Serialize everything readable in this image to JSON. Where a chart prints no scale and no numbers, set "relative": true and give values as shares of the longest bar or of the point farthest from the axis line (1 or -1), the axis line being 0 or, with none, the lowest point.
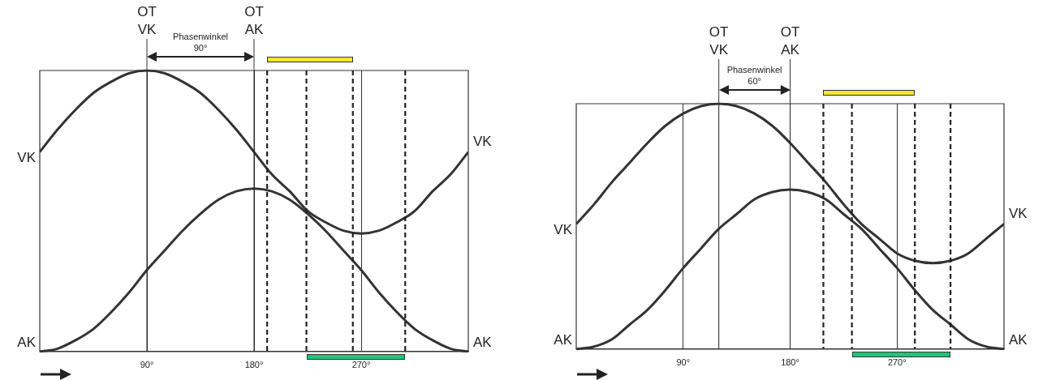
{
  "chart_data": [
    {
      "type": "line",
      "relative": true,
      "xlim": [
        0,
        360
      ],
      "xticks": [
        {
          "value": 90,
          "label": "90°"
        },
        {
          "value": 180,
          "label": "180°"
        },
        {
          "value": 270,
          "label": "270°"
        }
      ],
      "grid": "x",
      "legend": false,
      "marker": "none",
      "line_style": "solid",
      "series": [
        {
          "name": "VK",
          "color": "#333333",
          "x": [
            0,
            15,
            30,
            45,
            60,
            75,
            90,
            105,
            120,
            135,
            150,
            165,
            180,
            195,
            210,
            225,
            240,
            255,
            270,
            285,
            300,
            315,
            330,
            345,
            360
          ],
          "values": [
            0.71,
            0.79,
            0.86,
            0.92,
            0.96,
            0.99,
            1,
            0.99,
            0.96,
            0.92,
            0.86,
            0.79,
            0.71,
            0.63,
            0.57,
            0.5,
            0.46,
            0.43,
            0.42,
            0.43,
            0.46,
            0.5,
            0.57,
            0.63,
            0.71
          ]
        },
        {
          "name": "AK",
          "color": "#333333",
          "x": [
            0,
            15,
            30,
            45,
            60,
            75,
            90,
            105,
            120,
            135,
            150,
            165,
            180,
            195,
            210,
            225,
            240,
            255,
            270,
            285,
            300,
            315,
            330,
            345,
            360
          ],
          "values": [
            0,
            0.01,
            0.04,
            0.08,
            0.14,
            0.21,
            0.29,
            0.36,
            0.43,
            0.49,
            0.54,
            0.57,
            0.58,
            0.57,
            0.54,
            0.49,
            0.43,
            0.36,
            0.29,
            0.21,
            0.14,
            0.08,
            0.04,
            0.01,
            0
          ]
        }
      ],
      "ref_lines": [
        {
          "axis": "x",
          "value": 90,
          "label": "OT VK",
          "line_style": "solid"
        },
        {
          "axis": "x",
          "value": 180,
          "label": "OT AK",
          "line_style": "solid"
        },
        {
          "axis": "x",
          "value": 191,
          "line_style": "dashed"
        },
        {
          "axis": "x",
          "value": 263,
          "line_style": "dashed"
        },
        {
          "axis": "x",
          "value": 224,
          "line_style": "dashed"
        },
        {
          "axis": "x",
          "value": 307,
          "line_style": "dashed"
        }
      ],
      "annotations": [
        "Phasenwinkel 90°"
      ]
    },
    {
      "type": "line",
      "relative": true,
      "xlim": [
        0,
        360
      ],
      "xticks": [
        {
          "value": 90,
          "label": "90°"
        },
        {
          "value": 180,
          "label": "180°"
        },
        {
          "value": 270,
          "label": "270°"
        }
      ],
      "grid": "x",
      "legend": false,
      "marker": "none",
      "line_style": "solid",
      "series": [
        {
          "name": "VK",
          "color": "#333333",
          "x": [
            0,
            15,
            30,
            45,
            60,
            75,
            90,
            105,
            120,
            135,
            150,
            165,
            180,
            195,
            210,
            225,
            240,
            255,
            270,
            285,
            300,
            315,
            330,
            345,
            360
          ],
          "values": [
            0.51,
            0.59,
            0.68,
            0.76,
            0.84,
            0.91,
            0.96,
            0.99,
            1,
            0.99,
            0.96,
            0.91,
            0.84,
            0.76,
            0.68,
            0.59,
            0.51,
            0.45,
            0.39,
            0.36,
            0.35,
            0.36,
            0.39,
            0.45,
            0.51
          ]
        },
        {
          "name": "AK",
          "color": "#333333",
          "x": [
            0,
            15,
            30,
            45,
            60,
            75,
            90,
            105,
            120,
            135,
            150,
            165,
            180,
            195,
            210,
            225,
            240,
            255,
            270,
            285,
            300,
            315,
            330,
            345,
            360
          ],
          "values": [
            0,
            0.01,
            0.04,
            0.1,
            0.16,
            0.24,
            0.33,
            0.41,
            0.49,
            0.55,
            0.61,
            0.64,
            0.65,
            0.64,
            0.61,
            0.55,
            0.49,
            0.41,
            0.33,
            0.24,
            0.16,
            0.1,
            0.04,
            0.01,
            0
          ]
        }
      ],
      "ref_lines": [
        {
          "axis": "x",
          "value": 120,
          "label": "OT VK",
          "line_style": "solid"
        },
        {
          "axis": "x",
          "value": 180,
          "label": "OT AK",
          "line_style": "solid"
        },
        {
          "axis": "x",
          "value": 208,
          "line_style": "dashed"
        },
        {
          "axis": "x",
          "value": 285,
          "line_style": "dashed"
        },
        {
          "axis": "x",
          "value": 232,
          "line_style": "dashed"
        },
        {
          "axis": "x",
          "value": 315,
          "line_style": "dashed"
        }
      ],
      "annotations": [
        "Phasenwinkel 60°"
      ]
    }
  ]
}
